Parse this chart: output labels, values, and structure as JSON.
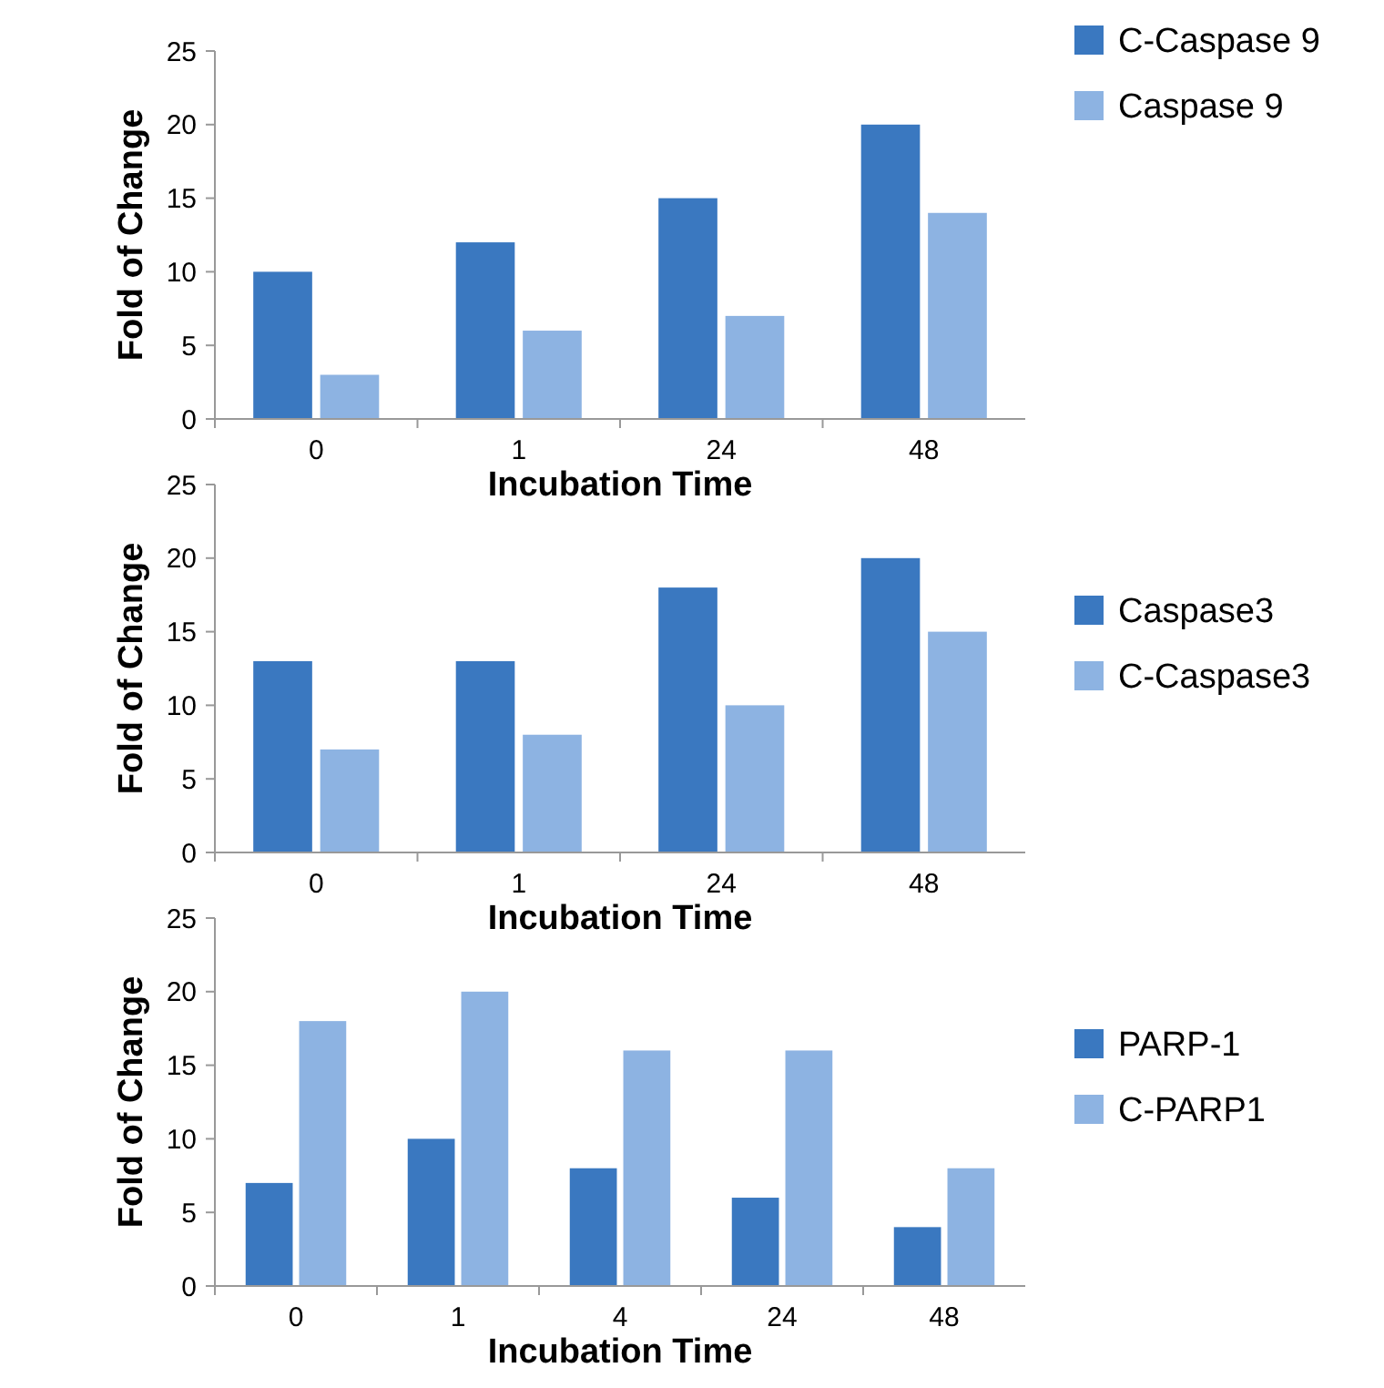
{
  "chart_data": [
    {
      "type": "bar",
      "xlabel": "Incubation Time",
      "ylabel": "Fold of Change",
      "categories": [
        "0",
        "1",
        "24",
        "48"
      ],
      "ylim": [
        0,
        25
      ],
      "yticks": [
        0,
        5,
        10,
        15,
        20,
        25
      ],
      "legend": "top right",
      "series": [
        {
          "name": "C-Caspase 9",
          "color": "#3a78c0",
          "values": [
            10,
            12,
            15,
            20
          ]
        },
        {
          "name": "Caspase 9",
          "color": "#8db3e2",
          "values": [
            3,
            6,
            7,
            14
          ]
        }
      ]
    },
    {
      "type": "bar",
      "xlabel": "Incubation Time",
      "ylabel": "Fold of Change",
      "categories": [
        "0",
        "1",
        "24",
        "48"
      ],
      "ylim": [
        0,
        25
      ],
      "yticks": [
        0,
        5,
        10,
        15,
        20,
        25
      ],
      "legend": "right",
      "series": [
        {
          "name": "Caspase3",
          "color": "#3a78c0",
          "values": [
            13,
            13,
            18,
            20
          ]
        },
        {
          "name": "C-Caspase3",
          "color": "#8db3e2",
          "values": [
            7,
            8,
            10,
            15
          ]
        }
      ]
    },
    {
      "type": "bar",
      "xlabel": "Incubation Time",
      "ylabel": "Fold of Change",
      "categories": [
        "0",
        "1",
        "4",
        "24",
        "48"
      ],
      "ylim": [
        0,
        25
      ],
      "yticks": [
        0,
        5,
        10,
        15,
        20,
        25
      ],
      "legend": "right",
      "series": [
        {
          "name": "PARP-1",
          "color": "#3a78c0",
          "values": [
            7,
            10,
            8,
            6,
            4
          ]
        },
        {
          "name": "C-PARP1",
          "color": "#8db3e2",
          "values": [
            18,
            20,
            16,
            16,
            8
          ]
        }
      ]
    }
  ]
}
